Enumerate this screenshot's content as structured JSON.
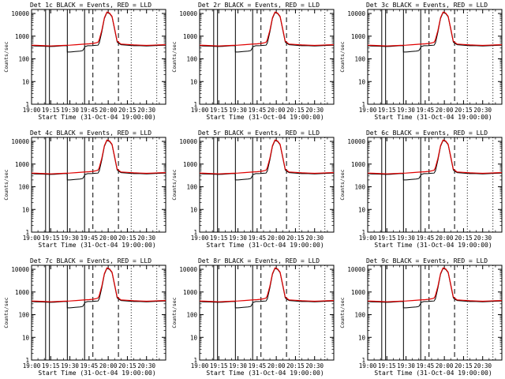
{
  "chart_data": [
    {
      "type": "line",
      "title": "Det 1c BLACK = Events, RED = LLD",
      "xlabel": "Start Time (31-Oct-04 19:00:00)",
      "ylabel": "Counts/sec",
      "ylog": true,
      "ylim": [
        1,
        15000
      ],
      "xlim": [
        0,
        105
      ],
      "x_tick_labels": [
        "19:00",
        "19:15",
        "19:30",
        "19:45",
        "20:00",
        "20:15",
        "20:30"
      ],
      "y_tick_labels": [
        "1",
        "10",
        "100",
        "1000",
        "10000"
      ]
    },
    {
      "type": "line",
      "title": "Det 2r BLACK = Events, RED = LLD",
      "xlabel": "Start Time (31-Oct-04 19:00:00)",
      "ylabel": "Counts/sec",
      "ylog": true,
      "ylim": [
        1,
        15000
      ],
      "xlim": [
        0,
        105
      ],
      "x_tick_labels": [
        "19:00",
        "19:15",
        "19:30",
        "19:45",
        "20:00",
        "20:15",
        "20:30"
      ],
      "y_tick_labels": [
        "1",
        "10",
        "100",
        "1000",
        "10000"
      ]
    },
    {
      "type": "line",
      "title": "Det 3c BLACK = Events, RED = LLD",
      "xlabel": "Start Time (31-Oct-04 19:00:00)",
      "ylabel": "Counts/sec",
      "ylog": true,
      "ylim": [
        1,
        15000
      ],
      "xlim": [
        0,
        105
      ],
      "x_tick_labels": [
        "19:00",
        "19:15",
        "19:30",
        "19:45",
        "20:00",
        "20:15",
        "20:30"
      ],
      "y_tick_labels": [
        "1",
        "10",
        "100",
        "1000",
        "10000"
      ]
    },
    {
      "type": "line",
      "title": "Det 4c BLACK = Events, RED = LLD",
      "xlabel": "Start Time (31-Oct-04 19:00:00)",
      "ylabel": "Counts/sec",
      "ylog": true,
      "ylim": [
        1,
        15000
      ],
      "xlim": [
        0,
        105
      ],
      "x_tick_labels": [
        "19:00",
        "19:15",
        "19:30",
        "19:45",
        "20:00",
        "20:15",
        "20:30"
      ],
      "y_tick_labels": [
        "1",
        "10",
        "100",
        "1000",
        "10000"
      ]
    },
    {
      "type": "line",
      "title": "Det 5r BLACK = Events, RED = LLD",
      "xlabel": "Start Time (31-Oct-04 19:00:00)",
      "ylabel": "Counts/sec",
      "ylog": true,
      "ylim": [
        1,
        15000
      ],
      "xlim": [
        0,
        105
      ],
      "x_tick_labels": [
        "19:00",
        "19:15",
        "19:30",
        "19:45",
        "20:00",
        "20:15",
        "20:30"
      ],
      "y_tick_labels": [
        "1",
        "10",
        "100",
        "1000",
        "10000"
      ]
    },
    {
      "type": "line",
      "title": "Det 6c BLACK = Events, RED = LLD",
      "xlabel": "Start Time (31-Oct-04 19:00:00)",
      "ylabel": "Counts/sec",
      "ylog": true,
      "ylim": [
        1,
        15000
      ],
      "xlim": [
        0,
        105
      ],
      "x_tick_labels": [
        "19:00",
        "19:15",
        "19:30",
        "19:45",
        "20:00",
        "20:15",
        "20:30"
      ],
      "y_tick_labels": [
        "1",
        "10",
        "100",
        "1000",
        "10000"
      ]
    },
    {
      "type": "line",
      "title": "Det 7c BLACK = Events, RED = LLD",
      "xlabel": "Start Time (31-Oct-04 19:00:00)",
      "ylabel": "Counts/sec",
      "ylog": true,
      "ylim": [
        1,
        15000
      ],
      "xlim": [
        0,
        105
      ],
      "x_tick_labels": [
        "19:00",
        "19:15",
        "19:30",
        "19:45",
        "20:00",
        "20:15",
        "20:30"
      ],
      "y_tick_labels": [
        "1",
        "10",
        "100",
        "1000",
        "10000"
      ]
    },
    {
      "type": "line",
      "title": "Det 8r BLACK = Events, RED = LLD",
      "xlabel": "Start Time (31-Oct-04 19:00:00)",
      "ylabel": "Counts/sec",
      "ylog": true,
      "ylim": [
        1,
        15000
      ],
      "xlim": [
        0,
        105
      ],
      "x_tick_labels": [
        "19:00",
        "19:15",
        "19:30",
        "19:45",
        "20:00",
        "20:15",
        "20:30"
      ],
      "y_tick_labels": [
        "1",
        "10",
        "100",
        "1000",
        "10000"
      ]
    },
    {
      "type": "line",
      "title": "Det 9c BLACK = Events, RED = LLD",
      "xlabel": "Start Time (31-Oct-04 19:00:00)",
      "ylabel": "Counts/sec",
      "ylog": true,
      "ylim": [
        1,
        15000
      ],
      "xlim": [
        0,
        105
      ],
      "x_tick_labels": [
        "19:00",
        "19:15",
        "19:30",
        "19:45",
        "20:00",
        "20:15",
        "20:30"
      ],
      "y_tick_labels": [
        "1",
        "10",
        "100",
        "1000",
        "10000"
      ]
    }
  ],
  "series_values": {
    "black_events": {
      "x": [
        0,
        3,
        6,
        9,
        12,
        15,
        18,
        20,
        22,
        25,
        27.9,
        28,
        30,
        32,
        34,
        36,
        38,
        40,
        42,
        44,
        46,
        48,
        50,
        52,
        53,
        55,
        57,
        59,
        61,
        63,
        65,
        67,
        70,
        75,
        80,
        85,
        90,
        95,
        100,
        105
      ],
      "y": [
        380,
        370,
        365,
        360,
        355,
        350,
        355,
        360,
        370,
        380,
        380,
        200,
        200,
        205,
        210,
        215,
        220,
        230,
        350,
        380,
        380,
        385,
        395,
        400,
        500,
        1500,
        6000,
        11000,
        10000,
        7000,
        2000,
        550,
        420,
        400,
        380,
        380,
        370,
        380,
        390,
        400
      ]
    },
    "red_lld": {
      "x": [
        0,
        5,
        10,
        15,
        20,
        25,
        30,
        35,
        40,
        45,
        48,
        50,
        52,
        53,
        55,
        57,
        59,
        61,
        63,
        65,
        67,
        70,
        75,
        80,
        85,
        90,
        95,
        100,
        105
      ],
      "y": [
        400,
        390,
        380,
        370,
        380,
        390,
        400,
        420,
        440,
        460,
        480,
        500,
        540,
        700,
        1800,
        6500,
        11500,
        10500,
        7500,
        2200,
        600,
        450,
        430,
        410,
        400,
        390,
        400,
        410,
        420
      ]
    },
    "black_solid_verticals_x": [
      11,
      14,
      28,
      41.5
    ],
    "dashed_verticals_x": [
      48,
      68
    ],
    "dotted_verticals_x": [
      78,
      98
    ]
  },
  "colors": {
    "events": "#000000",
    "lld": "#e00000",
    "background": "#ffffff"
  }
}
